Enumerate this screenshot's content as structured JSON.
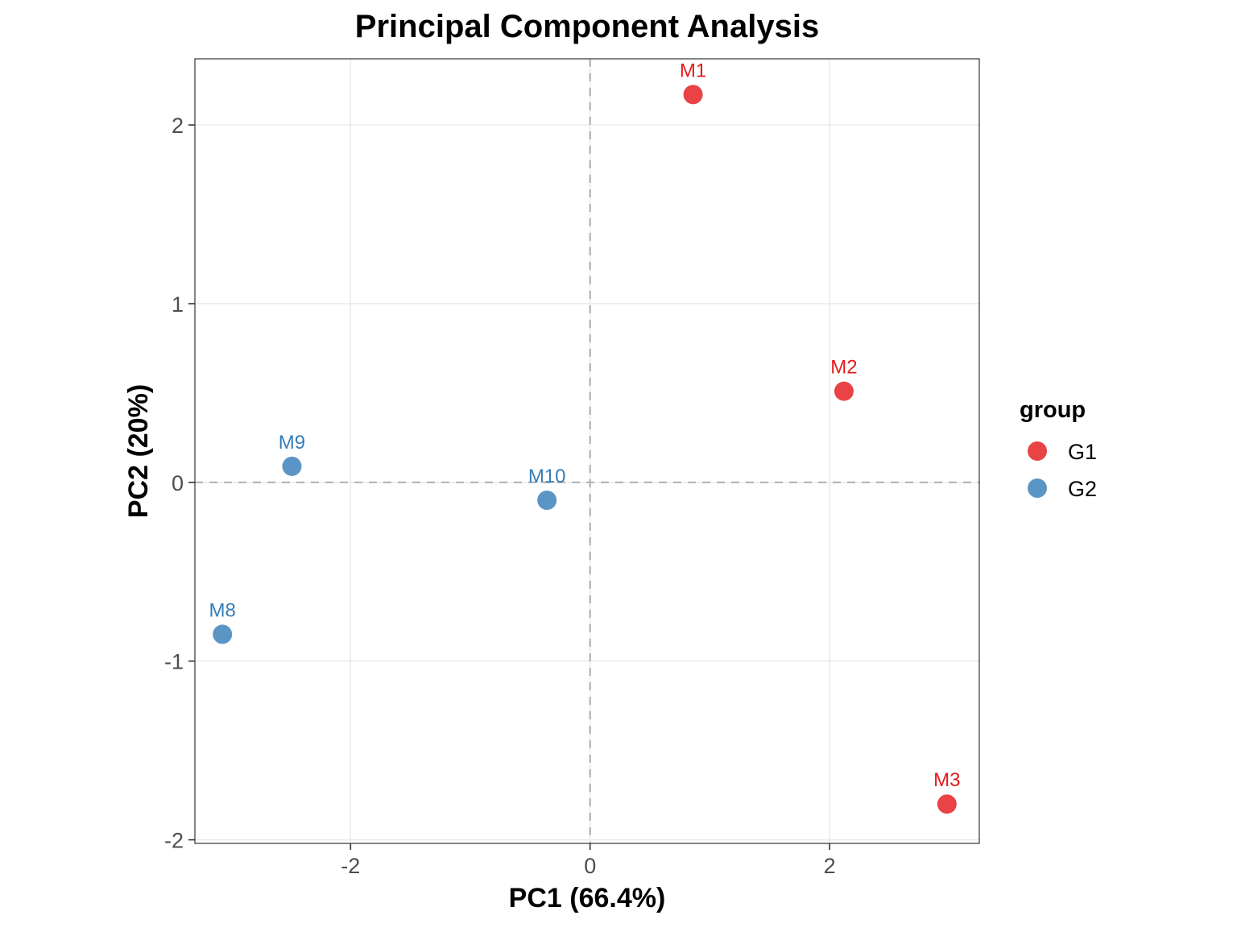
{
  "chart_data": {
    "type": "scatter",
    "title": "Principal Component Analysis",
    "xlabel": "PC1 (66.4%)",
    "ylabel": "PC2 (20%)",
    "xlim": [
      -3.3,
      3.25
    ],
    "ylim": [
      -2.02,
      2.37
    ],
    "x_ticks": [
      -2,
      0,
      2
    ],
    "y_ticks": [
      -2,
      -1,
      0,
      1,
      2
    ],
    "x_tick_labels": [
      "-2",
      "0",
      "2"
    ],
    "y_tick_labels": [
      "-2",
      "-1",
      "0",
      "1",
      "2"
    ],
    "grid": true,
    "reference_lines": {
      "x": 0,
      "y": 0,
      "style": "dashed"
    },
    "legend": {
      "title": "group",
      "position": "right",
      "entries": [
        {
          "name": "G1",
          "color": "#e41a1c"
        },
        {
          "name": "G2",
          "color": "#377eb8"
        }
      ]
    },
    "series": [
      {
        "name": "G1",
        "color": "#e41a1c",
        "points": [
          {
            "label": "M1",
            "x": 0.86,
            "y": 2.17
          },
          {
            "label": "M2",
            "x": 2.12,
            "y": 0.51
          },
          {
            "label": "M3",
            "x": 2.98,
            "y": -1.8
          }
        ]
      },
      {
        "name": "G2",
        "color": "#377eb8",
        "points": [
          {
            "label": "M8",
            "x": -3.07,
            "y": -0.85
          },
          {
            "label": "M9",
            "x": -2.49,
            "y": 0.09
          },
          {
            "label": "M10",
            "x": -0.36,
            "y": -0.1
          }
        ]
      }
    ]
  }
}
